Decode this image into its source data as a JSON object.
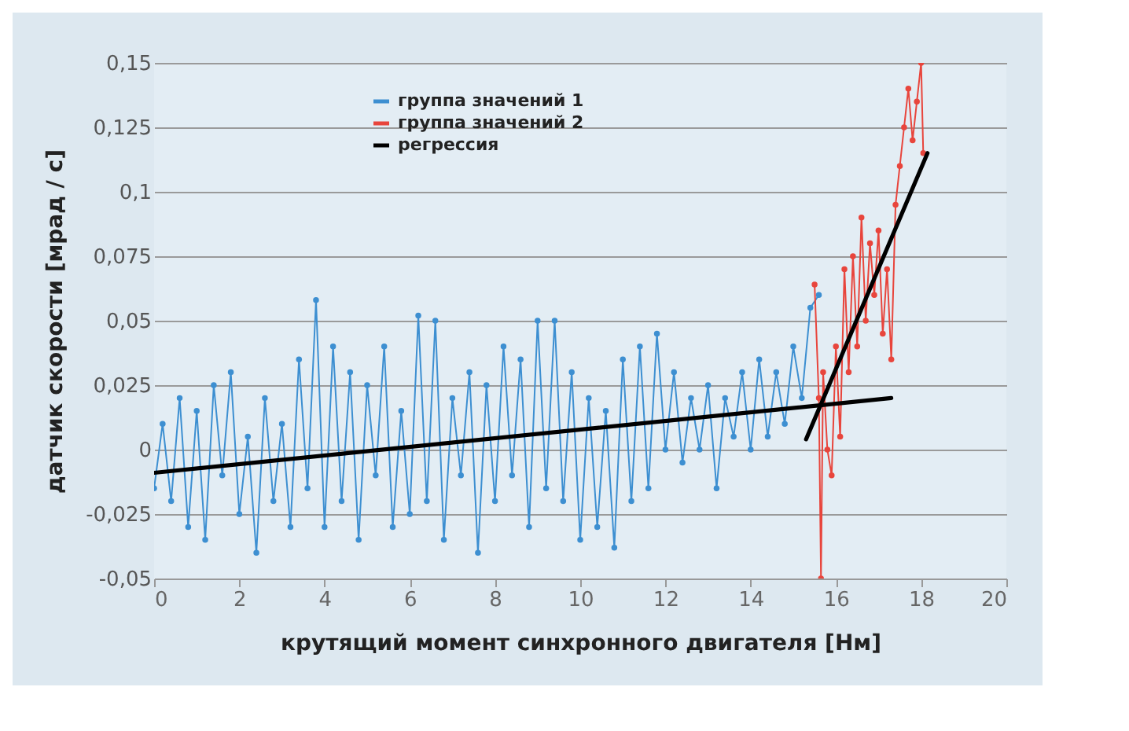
{
  "chart_data": {
    "type": "line",
    "xlabel": "крутящий момент синхронного двигателя [Нм]",
    "ylabel": "датчик скорости [мрад / с]",
    "xlim": [
      0,
      20
    ],
    "xticks": [
      0,
      2,
      4,
      6,
      8,
      10,
      12,
      14,
      16,
      18,
      20
    ],
    "ylim": [
      -0.05,
      0.15
    ],
    "yticks": [
      {
        "value": -0.05,
        "label": "-0,05"
      },
      {
        "value": -0.025,
        "label": "-0,025"
      },
      {
        "value": 0,
        "label": "0"
      },
      {
        "value": 0.025,
        "label": "0,025"
      },
      {
        "value": 0.05,
        "label": "0,05"
      },
      {
        "value": 0.075,
        "label": "0,075"
      },
      {
        "value": 0.1,
        "label": "0,1"
      },
      {
        "value": 0.125,
        "label": "0,125"
      },
      {
        "value": 0.15,
        "label": "0,15"
      }
    ],
    "grid": "y",
    "legend": "top left",
    "series": [
      {
        "name": "группа значений 1",
        "color": "#3d8fd1",
        "marker": "circle",
        "x": [
          0,
          0.2,
          0.4,
          0.6,
          0.8,
          1.0,
          1.2,
          1.4,
          1.6,
          1.8,
          2.0,
          2.2,
          2.4,
          2.6,
          2.8,
          3.0,
          3.2,
          3.4,
          3.6,
          3.8,
          4.0,
          4.2,
          4.4,
          4.6,
          4.8,
          5.0,
          5.2,
          5.4,
          5.6,
          5.8,
          6.0,
          6.2,
          6.4,
          6.6,
          6.8,
          7.0,
          7.2,
          7.4,
          7.6,
          7.8,
          8.0,
          8.2,
          8.4,
          8.6,
          8.8,
          9.0,
          9.2,
          9.4,
          9.6,
          9.8,
          10.0,
          10.2,
          10.4,
          10.6,
          10.8,
          11.0,
          11.2,
          11.4,
          11.6,
          11.8,
          12.0,
          12.2,
          12.4,
          12.6,
          12.8,
          13.0,
          13.2,
          13.4,
          13.6,
          13.8,
          14.0,
          14.2,
          14.4,
          14.6,
          14.8,
          15.0,
          15.2,
          15.4,
          15.6
        ],
        "values": [
          -0.015,
          0.01,
          -0.02,
          0.02,
          -0.03,
          0.015,
          -0.035,
          0.025,
          -0.01,
          0.03,
          -0.025,
          0.005,
          -0.04,
          0.02,
          -0.02,
          0.01,
          -0.03,
          0.035,
          -0.015,
          0.058,
          -0.03,
          0.04,
          -0.02,
          0.03,
          -0.035,
          0.025,
          -0.01,
          0.04,
          -0.03,
          0.015,
          -0.025,
          0.052,
          -0.02,
          0.05,
          -0.035,
          0.02,
          -0.01,
          0.03,
          -0.04,
          0.025,
          -0.02,
          0.04,
          -0.01,
          0.035,
          -0.03,
          0.05,
          -0.015,
          0.05,
          -0.02,
          0.03,
          -0.035,
          0.02,
          -0.03,
          0.015,
          -0.038,
          0.035,
          -0.02,
          0.04,
          -0.015,
          0.045,
          0.0,
          0.03,
          -0.005,
          0.02,
          0.0,
          0.025,
          -0.015,
          0.02,
          0.005,
          0.03,
          0.0,
          0.035,
          0.005,
          0.03,
          0.01,
          0.04,
          0.02,
          0.055,
          0.06
        ]
      },
      {
        "name": "группа значений 2",
        "color": "#e8453c",
        "marker": "circle",
        "x": [
          15.5,
          15.6,
          15.65,
          15.7,
          15.8,
          15.9,
          16.0,
          16.1,
          16.2,
          16.3,
          16.4,
          16.5,
          16.6,
          16.7,
          16.8,
          16.9,
          17.0,
          17.1,
          17.2,
          17.3,
          17.4,
          17.5,
          17.6,
          17.7,
          17.8,
          17.9,
          18.0,
          18.05
        ],
        "values": [
          0.064,
          0.02,
          -0.05,
          0.03,
          0.0,
          -0.01,
          0.04,
          0.005,
          0.07,
          0.03,
          0.075,
          0.04,
          0.09,
          0.05,
          0.08,
          0.06,
          0.085,
          0.045,
          0.07,
          0.035,
          0.095,
          0.11,
          0.125,
          0.14,
          0.12,
          0.135,
          0.15,
          0.115
        ]
      },
      {
        "name": "регрессия",
        "color": "#000000",
        "marker": "none",
        "x": [
          0,
          17.3
        ],
        "values": [
          -0.009,
          0.02
        ]
      },
      {
        "color": "#000000",
        "marker": "none",
        "x": [
          15.3,
          18.15
        ],
        "values": [
          0.004,
          0.115
        ]
      }
    ]
  }
}
